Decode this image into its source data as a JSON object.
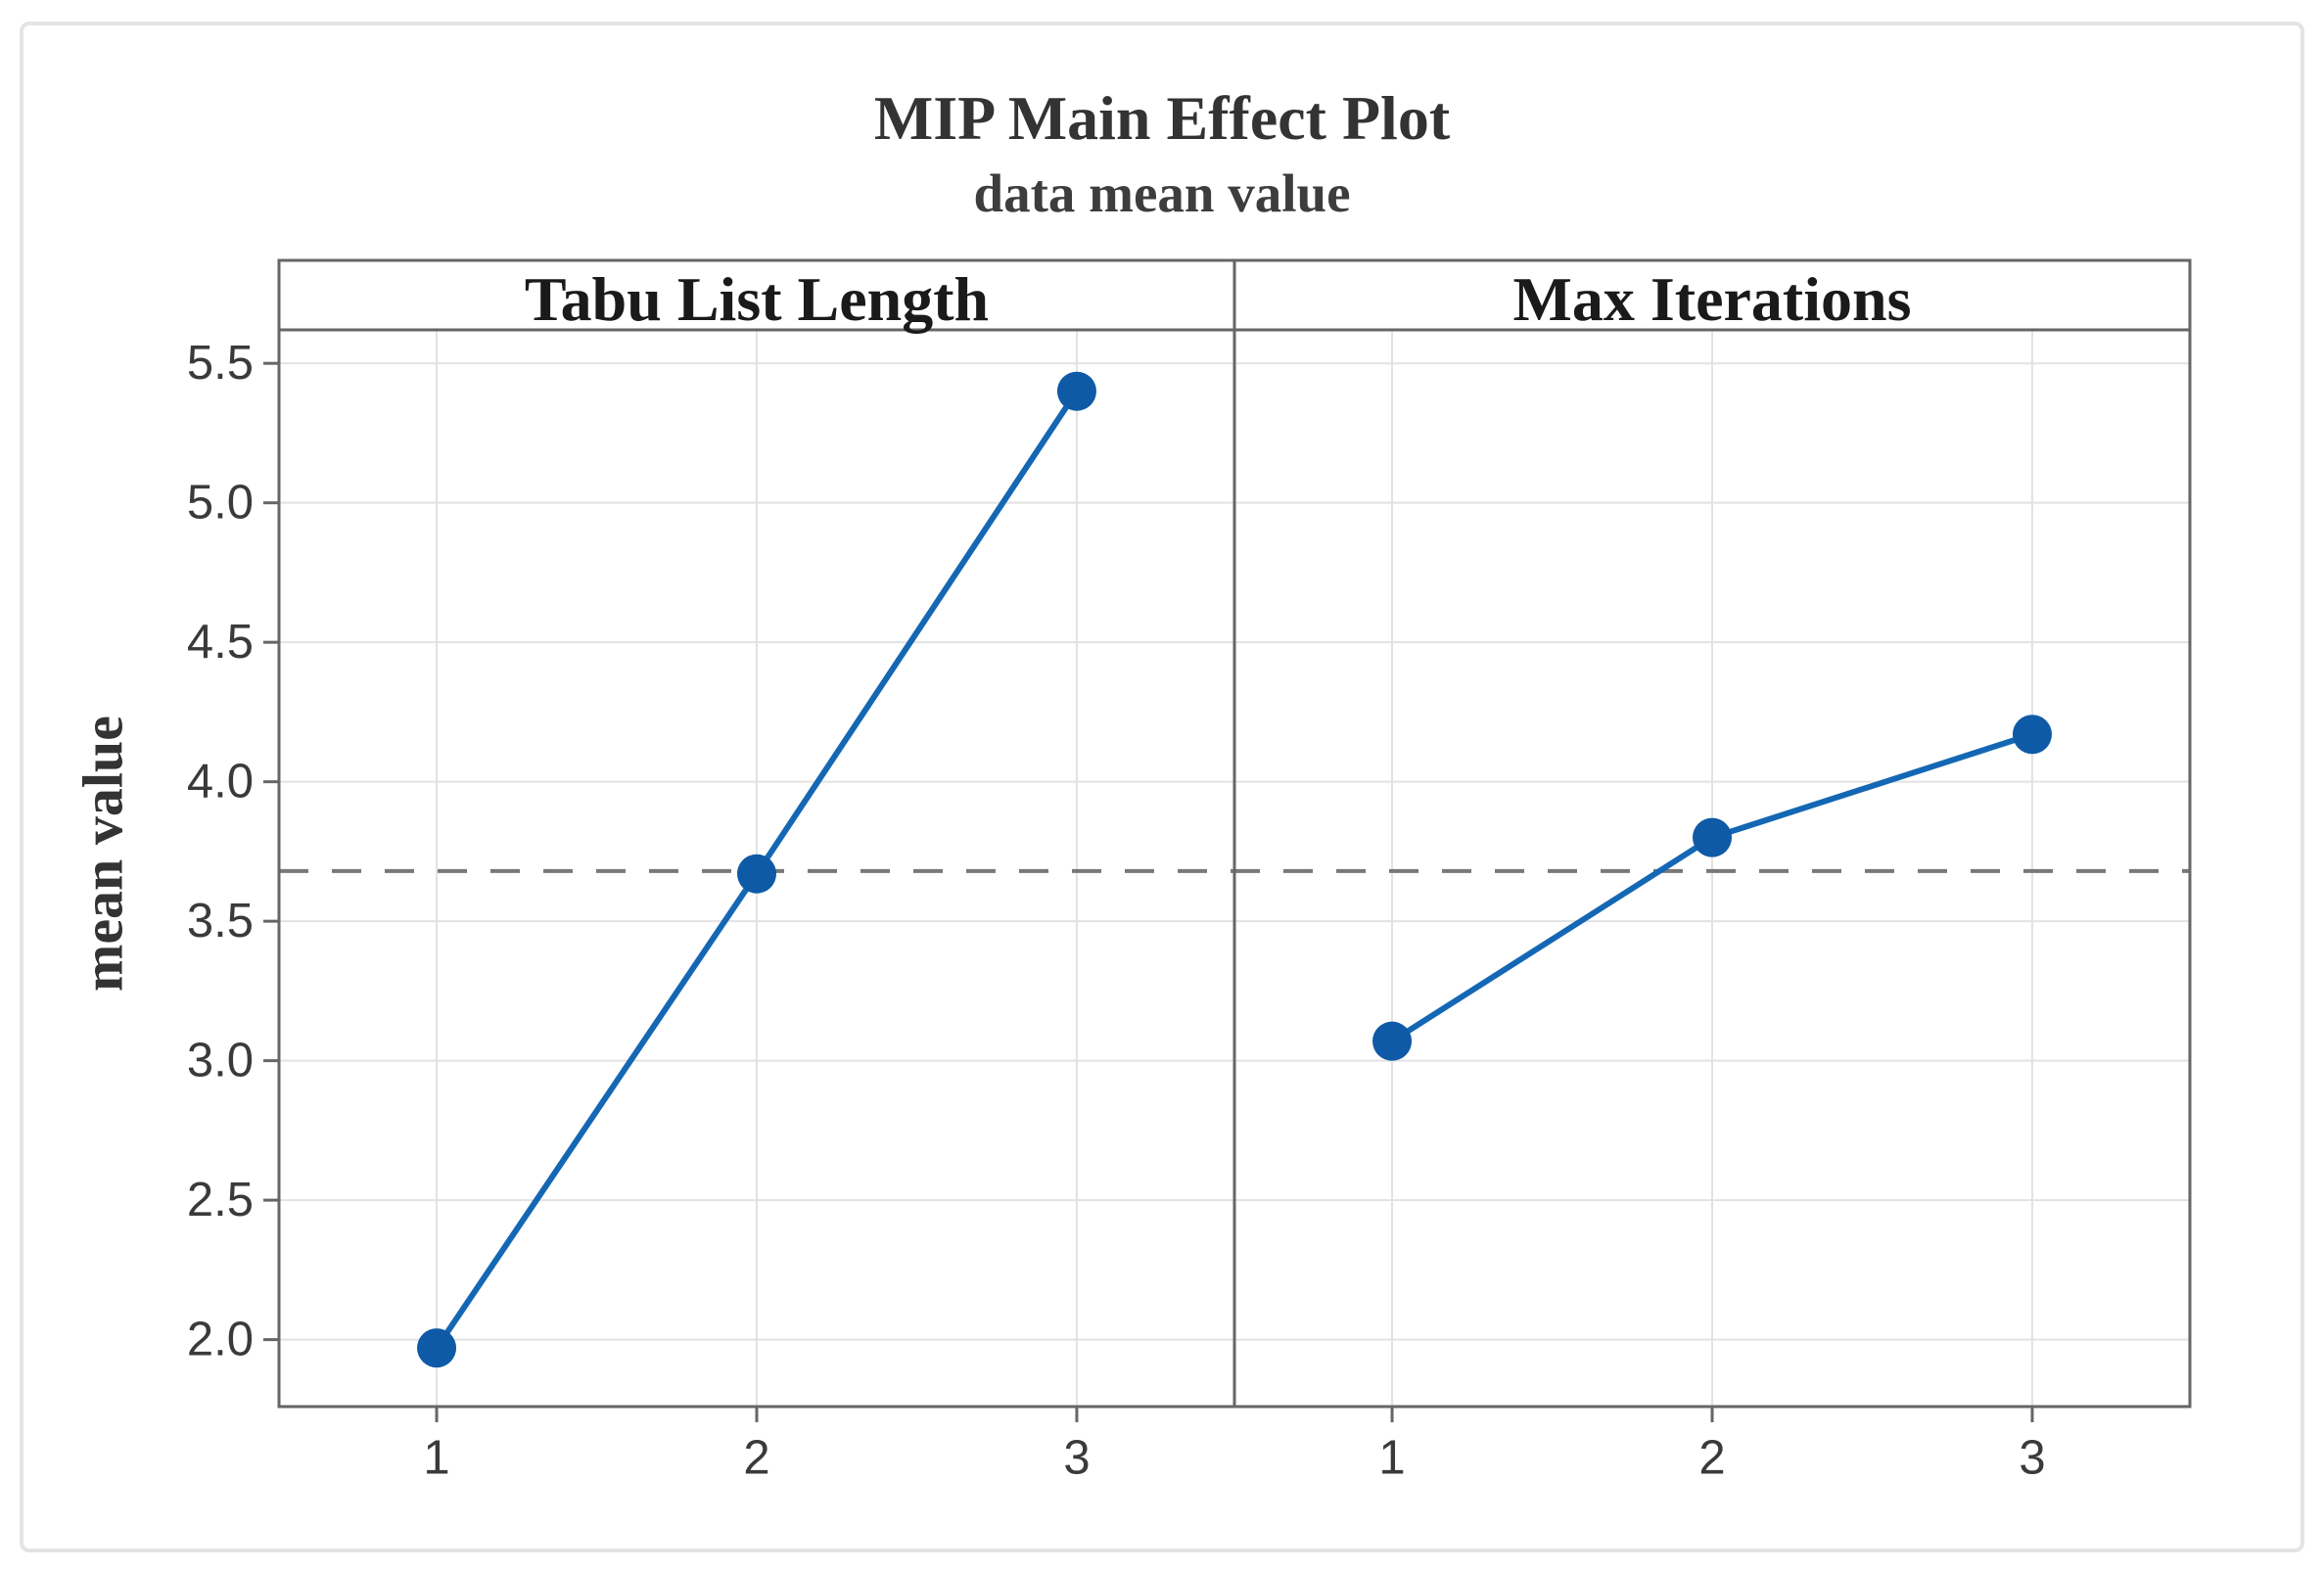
{
  "figure": {
    "title": "MIP Main Effect Plot",
    "subtitle": "data mean value"
  },
  "chart_data": {
    "type": "line",
    "title": "MIP Main Effect Plot",
    "subtitle": "data mean value",
    "ylabel": "mean value",
    "xlabel": "",
    "categories": [
      "1",
      "2",
      "3"
    ],
    "panels": [
      {
        "label": "Tabu List Length",
        "values": [
          1.97,
          3.67,
          5.4
        ]
      },
      {
        "label": "Max Iterations",
        "values": [
          3.07,
          3.8,
          4.17
        ]
      }
    ],
    "mean_line": 3.68,
    "mean_line_style": "dashed",
    "y_ticks": [
      "5.5",
      "5.0",
      "4.5",
      "4.0",
      "3.5",
      "3.0",
      "2.5",
      "2.0"
    ],
    "y_tick_values": [
      5.5,
      5.0,
      4.5,
      4.0,
      3.5,
      3.0,
      2.5,
      2.0
    ],
    "ylim": [
      1.76,
      5.62
    ],
    "grid": true,
    "legend": "none",
    "colors": {
      "marker": "#0e5aa6",
      "line": "#1467b4",
      "grid": "#e2e2e2",
      "frame": "#666666",
      "mean_line": "#787878",
      "tick_text": "#3a3a3a",
      "title_text": "#333333"
    }
  }
}
